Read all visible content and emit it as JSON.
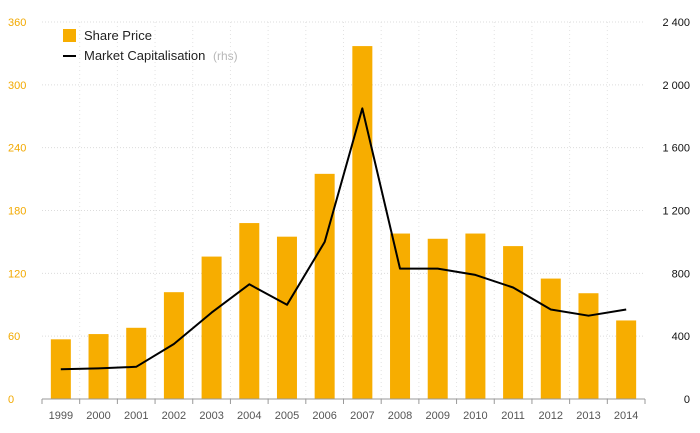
{
  "chart_data": {
    "type": "bar",
    "categories": [
      "1999",
      "2000",
      "2001",
      "2002",
      "2003",
      "2004",
      "2005",
      "2006",
      "2007",
      "2008",
      "2009",
      "2010",
      "2011",
      "2012",
      "2013",
      "2014"
    ],
    "series": [
      {
        "name": "Share Price",
        "type": "bar",
        "axis": "left",
        "color": "#f7ad00",
        "values": [
          57,
          62,
          68,
          102,
          136,
          168,
          155,
          215,
          337,
          158,
          153,
          158,
          146,
          115,
          101,
          75
        ]
      },
      {
        "name": "Market Capitalisation",
        "name_suffix": "(rhs)",
        "type": "line",
        "axis": "right",
        "color": "#000000",
        "values": [
          190,
          195,
          205,
          350,
          550,
          730,
          600,
          1000,
          1850,
          830,
          830,
          790,
          710,
          570,
          530,
          570
        ]
      }
    ],
    "y_left": {
      "ylim": [
        0,
        360
      ],
      "ticks": [
        "0",
        "60",
        "120",
        "180",
        "240",
        "300",
        "360"
      ],
      "color": "#f2a900"
    },
    "y_right": {
      "ylim": [
        0,
        2400
      ],
      "ticks": [
        "0",
        "400",
        "800",
        "1 200",
        "1 600",
        "2 000",
        "2 400"
      ],
      "color": "#111111"
    },
    "grid": true,
    "legend_placement": "top-left"
  }
}
